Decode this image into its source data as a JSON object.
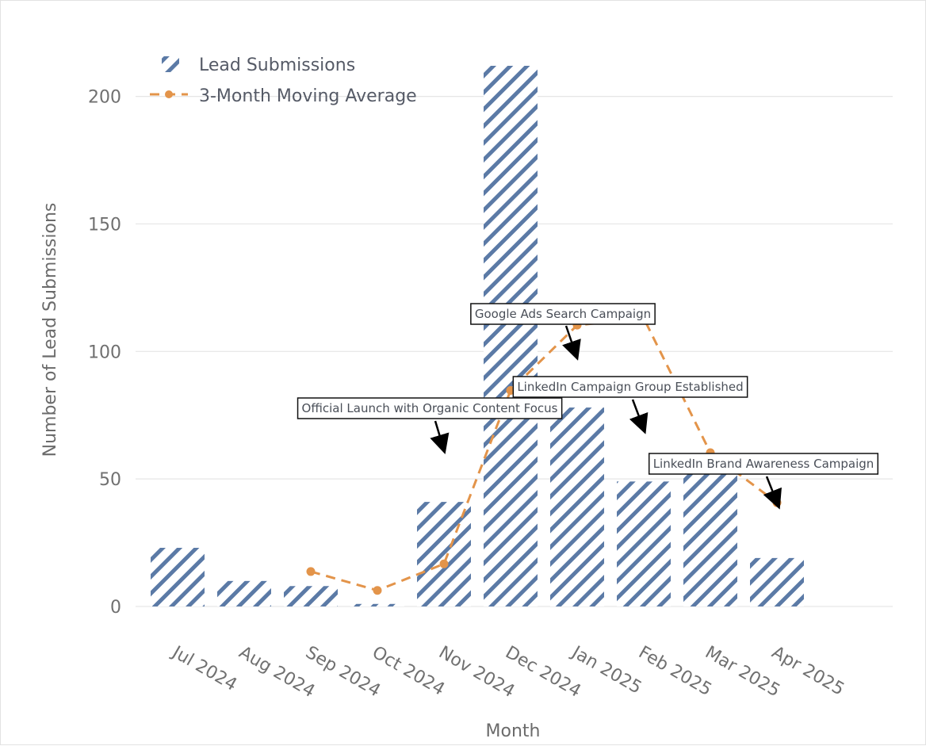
{
  "colors": {
    "bar_stripe": "#5b7aa6",
    "line": "#e3944a",
    "grid": "#e6e6e6",
    "text": "#707070"
  },
  "legend": {
    "bars_label": "Lead Submissions",
    "line_label": "3-Month Moving Average",
    "placement": "top-left"
  },
  "chart_data": {
    "type": "bar",
    "categories": [
      "Jul 2024",
      "Aug 2024",
      "Sep 2024",
      "Oct 2024",
      "Nov 2024",
      "Dec 2024",
      "Jan 2025",
      "Feb 2025",
      "Mar 2025",
      "Apr 2025"
    ],
    "series": [
      {
        "name": "Lead Submissions",
        "type": "bar",
        "pattern": "diagonal-hatch",
        "values": [
          23,
          10,
          8,
          1,
          41,
          212,
          78,
          49,
          54,
          19
        ]
      },
      {
        "name": "3-Month Moving Average",
        "type": "line",
        "style": "dashed",
        "values": [
          null,
          null,
          13.7,
          6.3,
          16.7,
          84.7,
          110.3,
          113.0,
          60.3,
          40.7
        ]
      }
    ],
    "xlabel": "Month",
    "ylabel": "Number of Lead Submissions",
    "ylim": [
      0,
      212
    ],
    "yticks": [
      0,
      50,
      100,
      150,
      200
    ],
    "grid": true,
    "annotations": [
      {
        "text": "Official Launch with Organic Content Focus",
        "category": "Nov 2024",
        "y": 16.7
      },
      {
        "text": "Google Ads Search Campaign",
        "category": "Jan 2025",
        "y": 110.3
      },
      {
        "text": "LinkedIn Campaign Group Established",
        "category": "Feb 2025",
        "y": 113.0
      },
      {
        "text": "LinkedIn Brand Awareness Campaign",
        "category": "Apr 2025",
        "y": 40.7
      }
    ]
  }
}
